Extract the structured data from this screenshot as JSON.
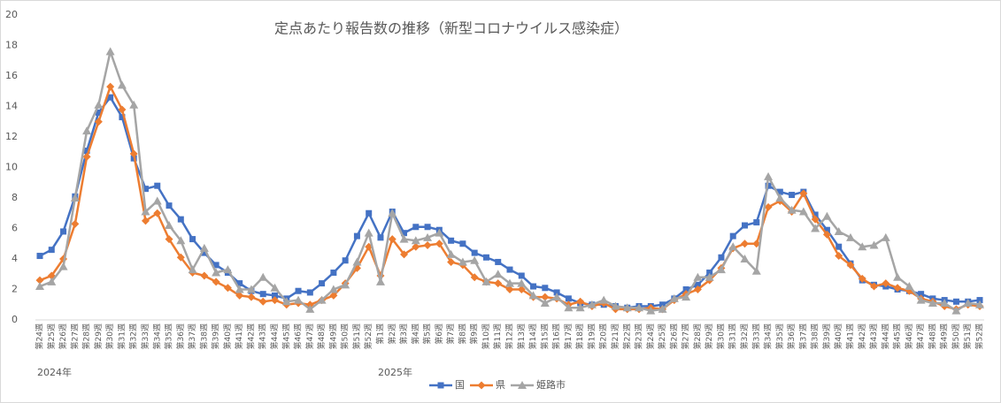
{
  "chart_data": {
    "type": "line",
    "title": "定点あたり報告数の推移（新型コロナウイルス感染症）",
    "categories": [
      "第24週",
      "第25週",
      "第26週",
      "第27週",
      "第28週",
      "第29週",
      "第30週",
      "第31週",
      "第32週",
      "第33週",
      "第34週",
      "第35週",
      "第36週",
      "第37週",
      "第38週",
      "第39週",
      "第40週",
      "第41週",
      "第42週",
      "第43週",
      "第44週",
      "第45週",
      "第46週",
      "第47週",
      "第48週",
      "第49週",
      "第50週",
      "第51週",
      "第52週",
      "第1週",
      "第2週",
      "第3週",
      "第4週",
      "第5週",
      "第6週",
      "第7週",
      "第8週",
      "第9週",
      "第10週",
      "第11週",
      "第12週",
      "第13週",
      "第14週",
      "第15週",
      "第16週",
      "第17週",
      "第18週",
      "第19週",
      "第20週",
      "第21週",
      "第22週",
      "第23週",
      "第24週",
      "第25週",
      "第26週",
      "第27週",
      "第28週",
      "第29週",
      "第30週",
      "第31週",
      "第32週",
      "第33週",
      "第34週",
      "第35週",
      "第36週",
      "第37週",
      "第38週",
      "第39週",
      "第40週",
      "第41週",
      "第42週",
      "第43週",
      "第44週",
      "第45週",
      "第46週",
      "第47週",
      "第48週",
      "第49週",
      "第50週",
      "第51週",
      "第52週"
    ],
    "annotations": [
      "2024年",
      "2025年"
    ],
    "series": [
      {
        "name": "国",
        "color": "#4472c4",
        "marker": "square",
        "values": [
          4.2,
          4.6,
          5.8,
          8.1,
          11.1,
          13.6,
          14.6,
          13.3,
          10.6,
          8.6,
          8.8,
          7.5,
          6.6,
          5.3,
          4.4,
          3.6,
          3.1,
          2.4,
          1.9,
          1.7,
          1.6,
          1.4,
          1.9,
          1.8,
          2.4,
          3.1,
          3.9,
          5.5,
          7.0,
          5.4,
          7.1,
          5.7,
          6.1,
          6.1,
          5.9,
          5.2,
          5.0,
          4.4,
          4.1,
          3.8,
          3.3,
          2.9,
          2.2,
          2.1,
          1.8,
          1.4,
          1.1,
          1.0,
          1.0,
          0.9,
          0.8,
          0.9,
          0.9,
          1.0,
          1.4,
          2.0,
          2.3,
          3.1,
          4.1,
          5.5,
          6.2,
          6.4,
          8.8,
          8.4,
          8.2,
          8.4,
          6.9,
          5.9,
          4.8,
          3.7,
          2.6,
          2.3,
          2.2,
          2.0,
          1.9,
          1.7,
          1.4,
          1.3,
          1.2,
          1.2,
          1.3
        ]
      },
      {
        "name": "県",
        "color": "#ed7d31",
        "marker": "diamond",
        "values": [
          2.6,
          2.9,
          4.0,
          6.3,
          10.7,
          13.0,
          15.3,
          13.8,
          10.9,
          6.5,
          7.0,
          5.3,
          4.1,
          3.1,
          2.9,
          2.5,
          2.1,
          1.6,
          1.5,
          1.2,
          1.3,
          1.0,
          1.1,
          1.0,
          1.3,
          1.6,
          2.4,
          3.4,
          4.8,
          2.9,
          5.3,
          4.3,
          4.8,
          4.9,
          5.0,
          3.8,
          3.6,
          2.8,
          2.5,
          2.4,
          2.0,
          2.0,
          1.5,
          1.5,
          1.4,
          1.0,
          1.2,
          0.9,
          1.1,
          0.7,
          0.7,
          0.7,
          0.8,
          0.7,
          1.3,
          1.7,
          2.0,
          2.6,
          3.4,
          4.7,
          5.0,
          5.0,
          7.4,
          7.8,
          7.1,
          8.3,
          6.6,
          5.6,
          4.2,
          3.6,
          2.7,
          2.2,
          2.4,
          2.1,
          1.9,
          1.4,
          1.2,
          0.9,
          0.7,
          1.0,
          0.9
        ]
      },
      {
        "name": "姫路市",
        "color": "#a5a5a5",
        "marker": "triangle",
        "values": [
          2.2,
          2.5,
          3.5,
          8.0,
          12.4,
          14.1,
          17.6,
          15.4,
          14.1,
          7.1,
          7.8,
          6.2,
          5.2,
          3.3,
          4.7,
          3.1,
          3.3,
          2.0,
          2.0,
          2.8,
          2.1,
          1.2,
          1.3,
          0.7,
          1.3,
          2.0,
          2.3,
          3.8,
          5.7,
          2.5,
          7.0,
          5.3,
          5.2,
          5.4,
          5.7,
          4.3,
          3.8,
          3.9,
          2.5,
          3.0,
          2.4,
          2.4,
          1.6,
          1.1,
          1.5,
          0.8,
          0.8,
          1.0,
          1.3,
          0.9,
          0.8,
          0.8,
          0.6,
          0.7,
          1.4,
          1.5,
          2.8,
          2.8,
          3.3,
          4.8,
          4.0,
          3.2,
          9.4,
          8.0,
          7.2,
          7.1,
          6.0,
          6.8,
          5.8,
          5.4,
          4.8,
          4.9,
          5.4,
          2.8,
          2.2,
          1.3,
          1.1,
          1.1,
          0.6,
          1.1,
          1.0
        ]
      }
    ],
    "ylim": [
      0,
      20
    ],
    "yticks": [
      0,
      2,
      4,
      6,
      8,
      10,
      12,
      14,
      16,
      18,
      20
    ],
    "grid": false,
    "legend": "bottom"
  }
}
